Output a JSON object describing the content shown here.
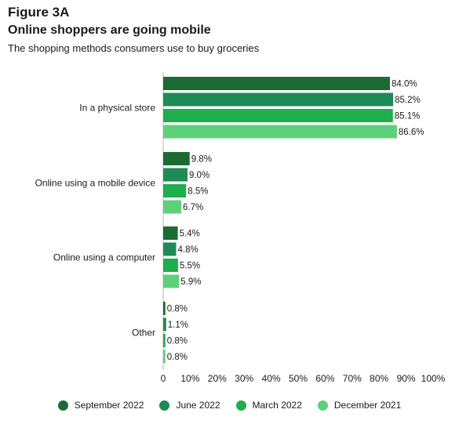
{
  "figure_label": "Figure 3A",
  "chart_data": {
    "type": "bar",
    "orientation": "horizontal",
    "title": "Online shoppers are going mobile",
    "subtitle": "The shopping methods consumers use to buy groceries",
    "categories": [
      "In a physical store",
      "Online using a mobile device",
      "Online using a computer",
      "Other"
    ],
    "series": [
      {
        "name": "September 2022",
        "color": "#1b6b33",
        "values": [
          84.0,
          9.8,
          5.4,
          0.8
        ]
      },
      {
        "name": "June 2022",
        "color": "#1e8a55",
        "values": [
          85.2,
          9.0,
          4.8,
          1.1
        ]
      },
      {
        "name": "March 2022",
        "color": "#1fae4b",
        "values": [
          85.1,
          8.5,
          5.5,
          0.8
        ]
      },
      {
        "name": "December 2021",
        "color": "#5fd07a",
        "values": [
          86.6,
          6.7,
          5.9,
          0.8
        ]
      }
    ],
    "value_suffix": "%",
    "xlim": [
      0,
      100
    ],
    "xticks": [
      "0",
      "10%",
      "20%",
      "30%",
      "40%",
      "50%",
      "60%",
      "70%",
      "80%",
      "90%",
      "100%"
    ],
    "grid": false,
    "legend_position": "bottom"
  }
}
